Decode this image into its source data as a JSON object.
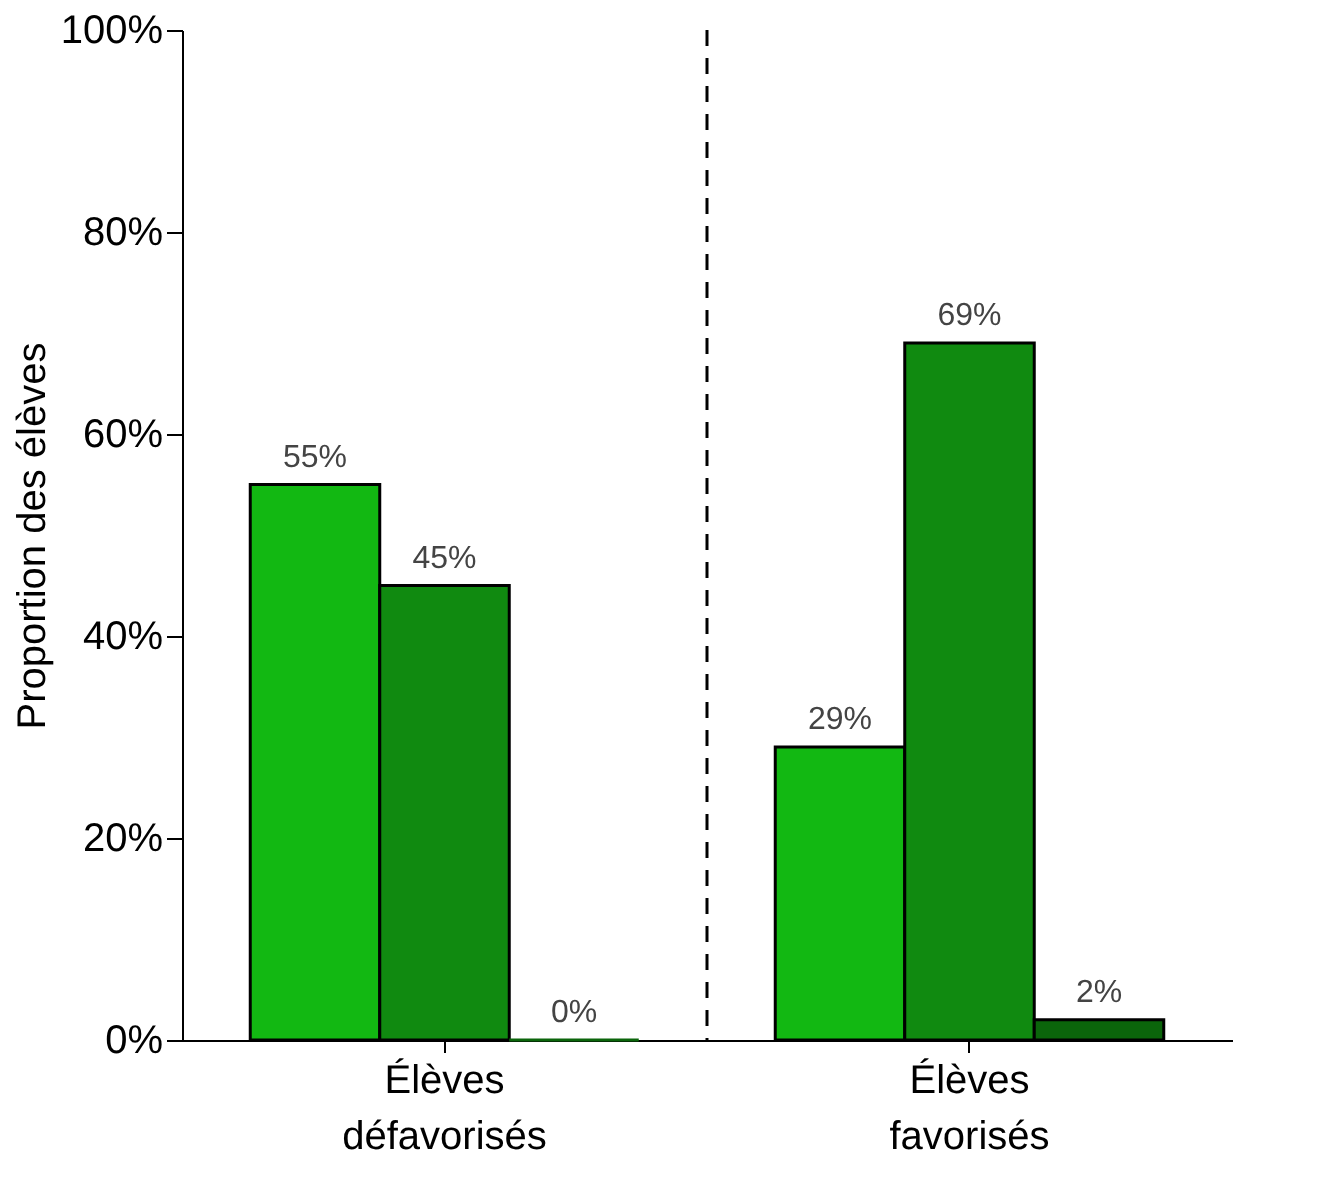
{
  "chart_data": {
    "type": "bar",
    "ylabel": "Proportion des élèves",
    "categories": [
      "Élèves défavorisés",
      "Élèves favorisés"
    ],
    "series": [
      {
        "color": "#12b812",
        "values": [
          55,
          29
        ],
        "value_labels": [
          "55%",
          "29%"
        ]
      },
      {
        "color": "#108a10",
        "values": [
          45,
          69
        ],
        "value_labels": [
          "45%",
          "69%"
        ]
      },
      {
        "color": "#0b650b",
        "values": [
          0,
          2
        ],
        "value_labels": [
          "0%",
          "2%"
        ]
      }
    ],
    "ylim": [
      0,
      100
    ],
    "yticks": [
      {
        "value": 0,
        "label": "0%"
      },
      {
        "value": 20,
        "label": "20%"
      },
      {
        "value": 40,
        "label": "40%"
      },
      {
        "value": 60,
        "label": "60%"
      },
      {
        "value": 80,
        "label": "80%"
      },
      {
        "value": 100,
        "label": "100%"
      }
    ],
    "grid": false
  }
}
